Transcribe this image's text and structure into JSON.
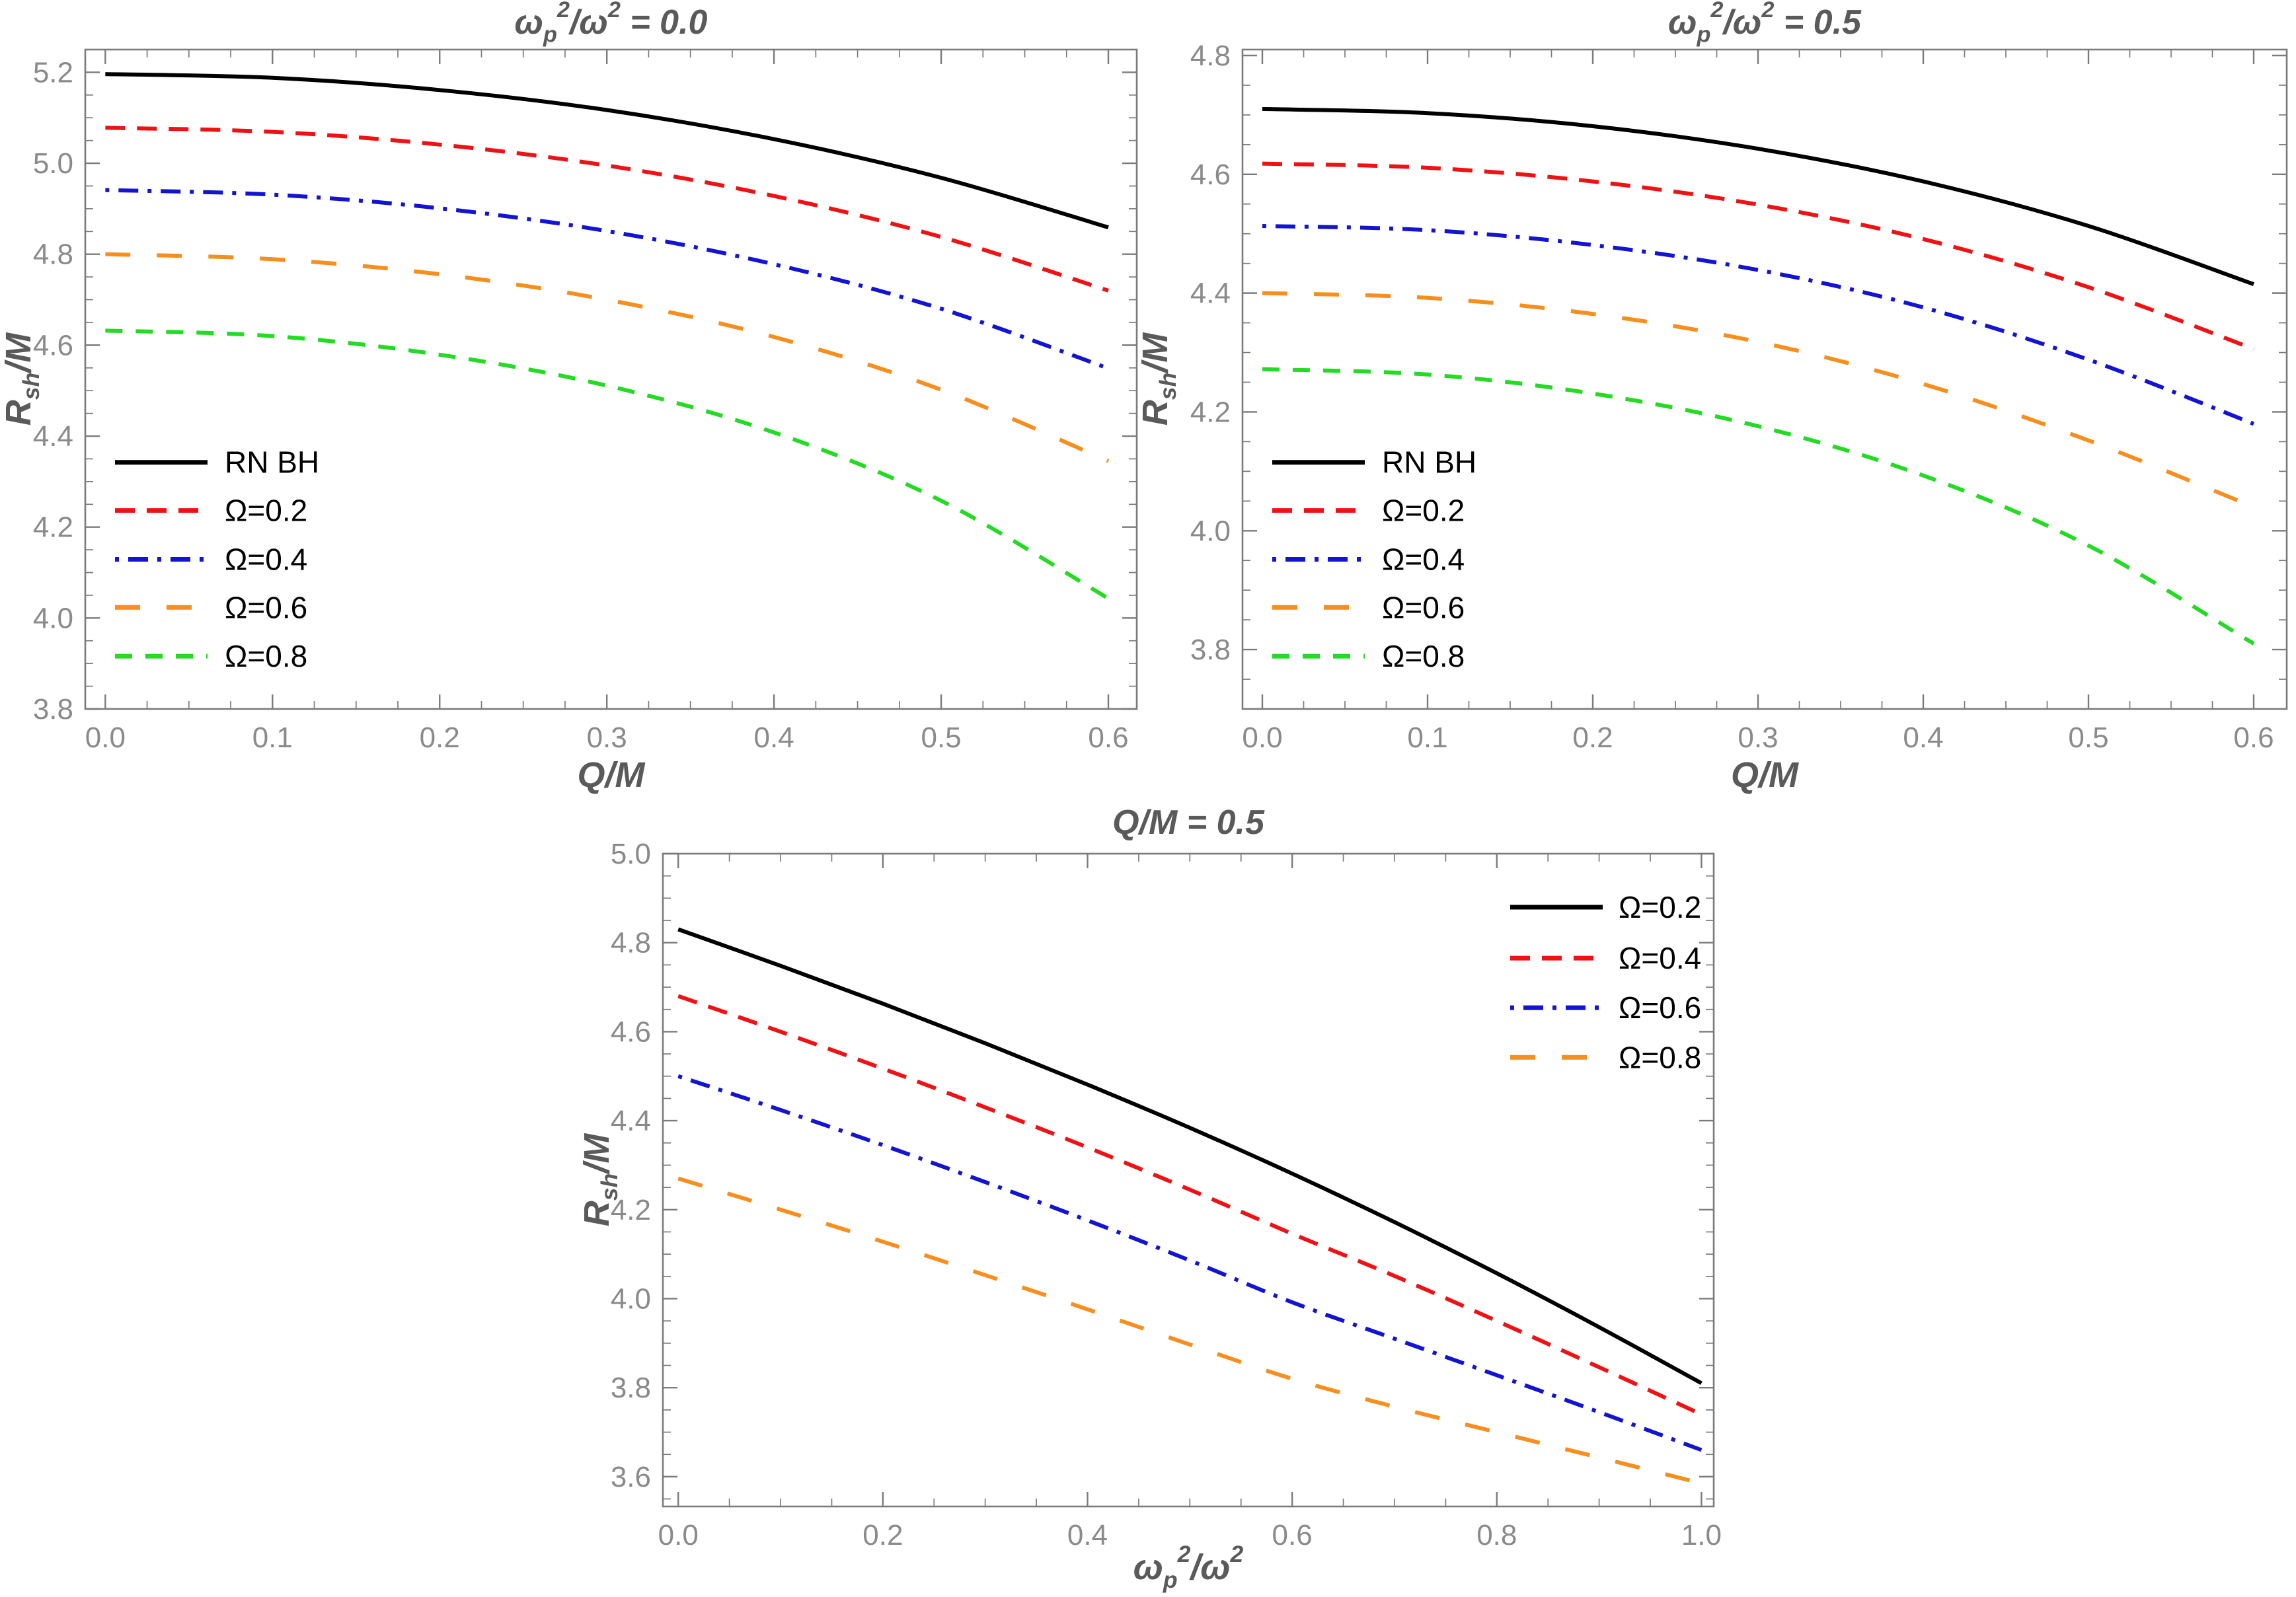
{
  "figure": {
    "background": "#ffffff",
    "frame_color": "#7b7b7b",
    "tick_label_color": "#8a8a8a",
    "title_color": "#5a5a5a",
    "legend_text_color": "#000000"
  },
  "chart_data": [
    {
      "id": "plot-plasma-0.0",
      "type": "line",
      "title": "ω_{p}^{2}/ω^{2} = 0.0",
      "xlabel": "Q/M",
      "ylabel": "R_{sh}/M",
      "xlim": [
        -0.012,
        0.617
      ],
      "ylim": [
        3.8,
        5.25
      ],
      "xticks": [
        0.0,
        0.1,
        0.2,
        0.3,
        0.4,
        0.5,
        0.6
      ],
      "yticks": [
        3.8,
        4.0,
        4.2,
        4.4,
        4.6,
        4.8,
        5.0,
        5.2
      ],
      "x_minor_step": 0.025,
      "y_minor_step": 0.05,
      "grid": false,
      "legend_position": "bottom-left",
      "x": [
        0.0,
        0.1,
        0.2,
        0.3,
        0.4,
        0.5,
        0.6
      ],
      "series": [
        {
          "name": "RN BH",
          "color": "#000000",
          "dash": "solid",
          "values": [
            5.196,
            5.188,
            5.161,
            5.117,
            5.053,
            4.968,
            4.859
          ]
        },
        {
          "name": "Ω=0.2",
          "color": "#EF1215",
          "dash": "dashed",
          "values": [
            5.078,
            5.069,
            5.041,
            4.995,
            4.928,
            4.838,
            4.72
          ]
        },
        {
          "name": "Ω=0.4",
          "color": "#1313D2",
          "dash": "dash-dot",
          "values": [
            4.941,
            4.931,
            4.901,
            4.851,
            4.778,
            4.68,
            4.549
          ]
        },
        {
          "name": "Ω=0.6",
          "color": "#F78E1E",
          "dash": "long-dash",
          "values": [
            4.8,
            4.789,
            4.756,
            4.7,
            4.618,
            4.502,
            4.345
          ]
        },
        {
          "name": "Ω=0.8",
          "color": "#22DB22",
          "dash": "short-dash",
          "values": [
            4.632,
            4.62,
            4.579,
            4.511,
            4.408,
            4.258,
            4.043
          ]
        }
      ]
    },
    {
      "id": "plot-plasma-0.5",
      "type": "line",
      "title": "ω_{p}^{2}/ω^{2} = 0.5",
      "xlabel": "Q/M",
      "ylabel": "R_{sh}/M",
      "xlim": [
        -0.012,
        0.62
      ],
      "ylim": [
        3.7,
        4.81
      ],
      "xticks": [
        0.0,
        0.1,
        0.2,
        0.3,
        0.4,
        0.5,
        0.6
      ],
      "yticks": [
        3.8,
        4.0,
        4.2,
        4.4,
        4.6,
        4.8
      ],
      "x_minor_step": 0.025,
      "y_minor_step": 0.05,
      "grid": false,
      "legend_position": "bottom-left",
      "x": [
        0.0,
        0.1,
        0.2,
        0.3,
        0.4,
        0.5,
        0.6
      ],
      "series": [
        {
          "name": "RN BH",
          "color": "#000000",
          "dash": "solid",
          "values": [
            4.71,
            4.703,
            4.681,
            4.643,
            4.588,
            4.513,
            4.415
          ]
        },
        {
          "name": "Ω=0.2",
          "color": "#EF1215",
          "dash": "dashed",
          "values": [
            4.618,
            4.611,
            4.588,
            4.549,
            4.491,
            4.41,
            4.306
          ]
        },
        {
          "name": "Ω=0.4",
          "color": "#1313D2",
          "dash": "dash-dot",
          "values": [
            4.513,
            4.506,
            4.481,
            4.439,
            4.376,
            4.288,
            4.18
          ]
        },
        {
          "name": "Ω=0.6",
          "color": "#F78E1E",
          "dash": "long-dash",
          "values": [
            4.4,
            4.392,
            4.365,
            4.318,
            4.247,
            4.152,
            4.04
          ]
        },
        {
          "name": "Ω=0.8",
          "color": "#22DB22",
          "dash": "short-dash",
          "values": [
            4.272,
            4.263,
            4.231,
            4.176,
            4.093,
            3.975,
            3.81
          ]
        }
      ]
    },
    {
      "id": "plot-qm-0.5",
      "type": "line",
      "title": "Q/M = 0.5",
      "xlabel": "ω_{p}^{2}/ω^{2}",
      "ylabel": "R_{sh}/M",
      "xlim": [
        -0.015,
        1.012
      ],
      "ylim": [
        3.533,
        5.0
      ],
      "xticks": [
        0.0,
        0.2,
        0.4,
        0.6,
        0.8,
        1.0
      ],
      "yticks": [
        3.6,
        3.8,
        4.0,
        4.2,
        4.4,
        4.6,
        4.8,
        5.0
      ],
      "x_minor_step": 0.05,
      "y_minor_step": 0.05,
      "grid": false,
      "legend_position": "top-right",
      "x": [
        0.0,
        0.1,
        0.2,
        0.3,
        0.4,
        0.5,
        0.6,
        0.7,
        0.8,
        0.9,
        1.0
      ],
      "series": [
        {
          "name": "Ω=0.2",
          "color": "#000000",
          "dash": "solid",
          "values": [
            4.83,
            4.748,
            4.663,
            4.574,
            4.481,
            4.384,
            4.281,
            4.172,
            4.057,
            3.936,
            3.81
          ]
        },
        {
          "name": "Ω=0.4",
          "color": "#EF1215",
          "dash": "dashed",
          "values": [
            4.68,
            4.6,
            4.517,
            4.43,
            4.34,
            4.245,
            4.146,
            4.051,
            3.95,
            3.846,
            3.74
          ]
        },
        {
          "name": "Ω=0.6",
          "color": "#1313D2",
          "dash": "dash-dot",
          "values": [
            4.5,
            4.424,
            4.345,
            4.262,
            4.176,
            4.086,
            3.992,
            3.91,
            3.828,
            3.745,
            3.66
          ]
        },
        {
          "name": "Ω=0.8",
          "color": "#F78E1E",
          "dash": "long-dash",
          "values": [
            4.27,
            4.2,
            4.128,
            4.053,
            3.976,
            3.897,
            3.82,
            3.757,
            3.7,
            3.643,
            3.585
          ]
        }
      ]
    }
  ]
}
